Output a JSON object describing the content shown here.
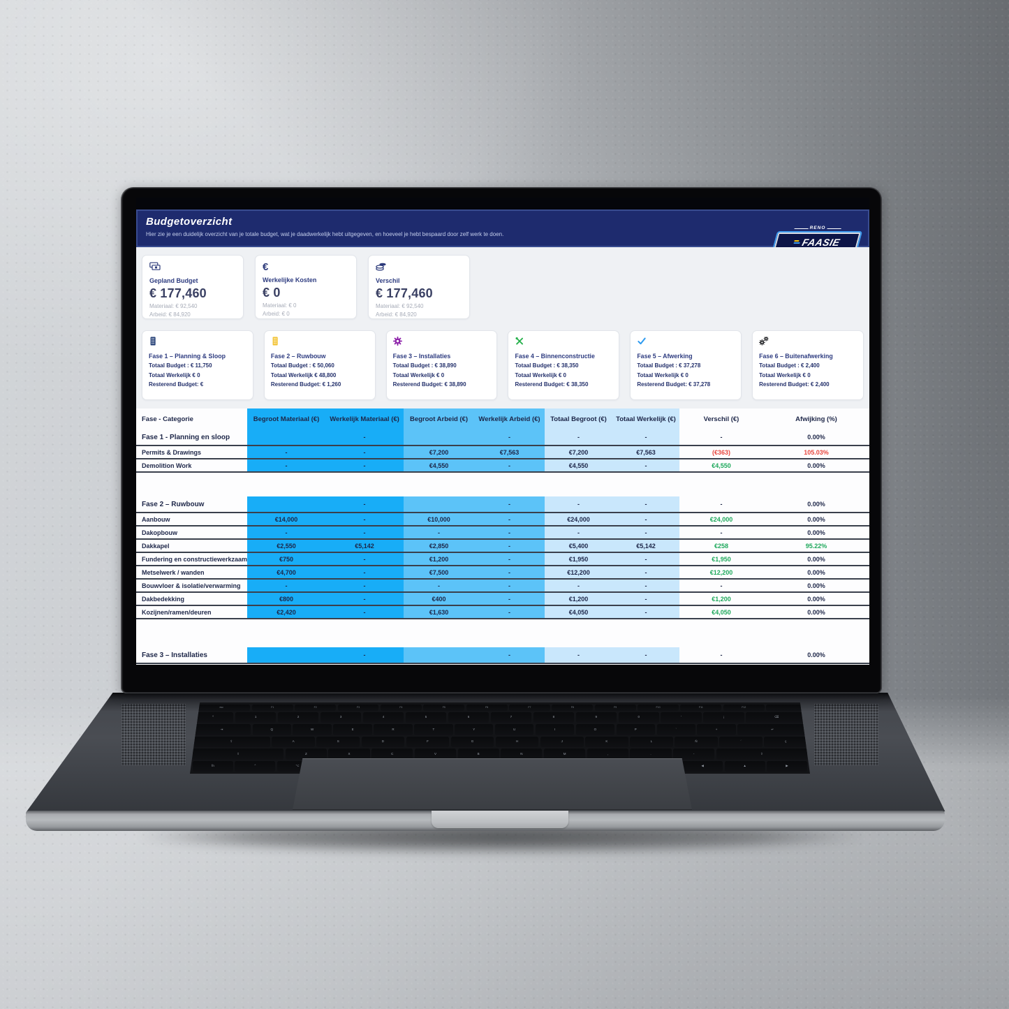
{
  "header": {
    "title": "Budgetoverzicht",
    "subtitle": "Hier zie je een duidelijk overzicht van je totale budget, wat je daadwerkelijk hebt uitgegeven, en hoeveel je hebt bespaard door zelf werk te doen.",
    "logo": {
      "top_label": "RENO",
      "name": "FAASIE"
    }
  },
  "summary_cards": [
    {
      "icon": "banknotes",
      "title": "Gepland Budget",
      "amount": "€ 177,460",
      "lines": [
        "Materiaal: € 92,540",
        "Arbeid: € 84,920"
      ]
    },
    {
      "icon": "euro",
      "title": "Werkelijke Kosten",
      "amount": "€ 0",
      "lines": [
        "Materiaal: € 0",
        "Arbeid: € 0"
      ]
    },
    {
      "icon": "coins",
      "title": "Verschil",
      "amount": "€ 177,460",
      "lines": [
        "Materiaal: € 92,540",
        "Arbeid: € 84,920"
      ]
    }
  ],
  "phase_cards": [
    {
      "icon": "building-navy",
      "title": "Fase 1 – Planning & Sloop",
      "lines": [
        "Totaal Budget : € 11,750",
        "Totaal Werkelijk € 0",
        "Resterend Budget: €"
      ]
    },
    {
      "icon": "building-yellow",
      "title": "Fase 2 – Ruwbouw",
      "lines": [
        "Totaal Budget : € 50,060",
        "Totaal Werkelijk € 48,800",
        "Resterend Budget: € 1,260"
      ]
    },
    {
      "icon": "gear-purple",
      "title": "Fase 3 – Installaties",
      "lines": [
        "Totaal Budget : € 38,890",
        "Totaal Werkelijk € 0",
        "Resterend Budget: € 38,890"
      ]
    },
    {
      "icon": "tools-green",
      "title": "Fase 4 – Binnenconstructie",
      "lines": [
        "Totaal Budget : € 38,350",
        "Totaal Werkelijk € 0",
        "Resterend Budget: € 38,350"
      ]
    },
    {
      "icon": "check-blue",
      "title": "Fase 5 – Afwerking",
      "lines": [
        "Totaal Budget : € 37,278",
        "Totaal Werkelijk € 0",
        "Resterend Budget: € 37,278"
      ]
    },
    {
      "icon": "gears-black",
      "title": "Fase 6 – Buitenafwerking",
      "lines": [
        "Totaal Budget : € 2,400",
        "Totaal Werkelijk € 0",
        "Resterend Budget: € 2,400"
      ]
    }
  ],
  "table": {
    "columns": [
      "Fase - Categorie",
      "Begroot Materiaal (€)",
      "Werkelijk Materiaal (€)",
      "Begroot Arbeid (€)",
      "Werkelijk Arbeid (€)",
      "Totaal Begroot (€)",
      "Totaal Werkelijk (€)",
      "Verschil (€)",
      "Afwijking (%)"
    ],
    "rows": [
      {
        "kind": "section",
        "label": "Fase 1 - Planning en sloop",
        "cells": [
          "",
          "-",
          "",
          "-",
          "-",
          "-",
          "-",
          "0.00%"
        ]
      },
      {
        "kind": "data",
        "label": "Permits & Drawings",
        "cells": [
          "-",
          "-",
          "€7,200",
          "€7,563",
          "€7,200",
          "€7,563",
          "(€363)",
          "105.03%"
        ],
        "vc": "red",
        "ac": "red"
      },
      {
        "kind": "data",
        "label": "Demolition Work",
        "cells": [
          "-",
          "-",
          "€4,550",
          "-",
          "€4,550",
          "-",
          "€4,550",
          "0.00%"
        ],
        "vc": "green"
      },
      {
        "kind": "gap",
        "h": 34
      },
      {
        "kind": "section",
        "label": "Fase 2 – Ruwbouw",
        "cells": [
          "",
          "-",
          "",
          "-",
          "-",
          "-",
          "-",
          "0.00%"
        ]
      },
      {
        "kind": "data",
        "label": "Aanbouw",
        "cells": [
          "€14,000",
          "-",
          "€10,000",
          "-",
          "€24,000",
          "-",
          "€24,000",
          "0.00%"
        ],
        "vc": "green"
      },
      {
        "kind": "data",
        "label": "Dakopbouw",
        "cells": [
          "-",
          "-",
          "-",
          "-",
          "-",
          "-",
          "-",
          "0.00%"
        ]
      },
      {
        "kind": "data",
        "label": "Dakkapel",
        "cells": [
          "€2,550",
          "€5,142",
          "€2,850",
          "-",
          "€5,400",
          "€5,142",
          "€258",
          "95.22%"
        ],
        "vc": "green",
        "ac": "green"
      },
      {
        "kind": "data",
        "label": "Fundering en constructiewerkzaamheden",
        "cells": [
          "€750",
          "-",
          "€1,200",
          "-",
          "€1,950",
          "-",
          "€1,950",
          "0.00%"
        ],
        "vc": "green"
      },
      {
        "kind": "data",
        "label": "Metselwerk / wanden",
        "cells": [
          "€4,700",
          "-",
          "€7,500",
          "-",
          "€12,200",
          "-",
          "€12,200",
          "0.00%"
        ],
        "vc": "green"
      },
      {
        "kind": "data",
        "label": "Bouwvloer & isolatie/verwarming",
        "cells": [
          "-",
          "-",
          "-",
          "-",
          "-",
          "-",
          "-",
          "0.00%"
        ]
      },
      {
        "kind": "data",
        "label": "Dakbedekking",
        "cells": [
          "€800",
          "-",
          "€400",
          "-",
          "€1,200",
          "-",
          "€1,200",
          "0.00%"
        ],
        "vc": "green"
      },
      {
        "kind": "data",
        "label": "Kozijnen/ramen/deuren",
        "cells": [
          "€2,420",
          "-",
          "€1,630",
          "-",
          "€4,050",
          "-",
          "€4,050",
          "0.00%"
        ],
        "vc": "green"
      },
      {
        "kind": "gap",
        "h": 40
      },
      {
        "kind": "section",
        "label": "Fase 3 – Installaties",
        "cells": [
          "",
          "-",
          "",
          "-",
          "-",
          "-",
          "-",
          "0.00%"
        ]
      }
    ]
  },
  "colors": {
    "header_navy": "#1e2b6e",
    "column_bright_blue": "#18adf7",
    "column_medium_blue": "#5cc3f8",
    "column_light_blue": "#c9e7fc",
    "positive_green": "#1fa95c",
    "negative_red": "#e8463e"
  },
  "keyboard": {
    "rows": [
      [
        "esc",
        "F1",
        "F2",
        "F3",
        "F4",
        "F5",
        "F6",
        "F7",
        "F8",
        "F9",
        "F10",
        "F11",
        "F12",
        ""
      ],
      [
        "º",
        "1",
        "2",
        "3",
        "4",
        "5",
        "6",
        "7",
        "8",
        "9",
        "0",
        "'",
        "¡",
        "⌫"
      ],
      [
        "⇥",
        "Q",
        "W",
        "E",
        "R",
        "T",
        "Y",
        "U",
        "I",
        "O",
        "P",
        "`",
        "+",
        "↵"
      ],
      [
        "⇪",
        "A",
        "S",
        "D",
        "F",
        "G",
        "H",
        "J",
        "K",
        "L",
        "Ñ",
        "´",
        "ç"
      ],
      [
        "⇧",
        "Z",
        "X",
        "C",
        "V",
        "B",
        "N",
        "M",
        ",",
        ".",
        "-",
        "⇧"
      ],
      [
        "fn",
        "⌃",
        "⌥",
        "⌘",
        "space",
        "⌘",
        "⌥",
        "◀",
        "▲",
        "▶"
      ]
    ]
  }
}
